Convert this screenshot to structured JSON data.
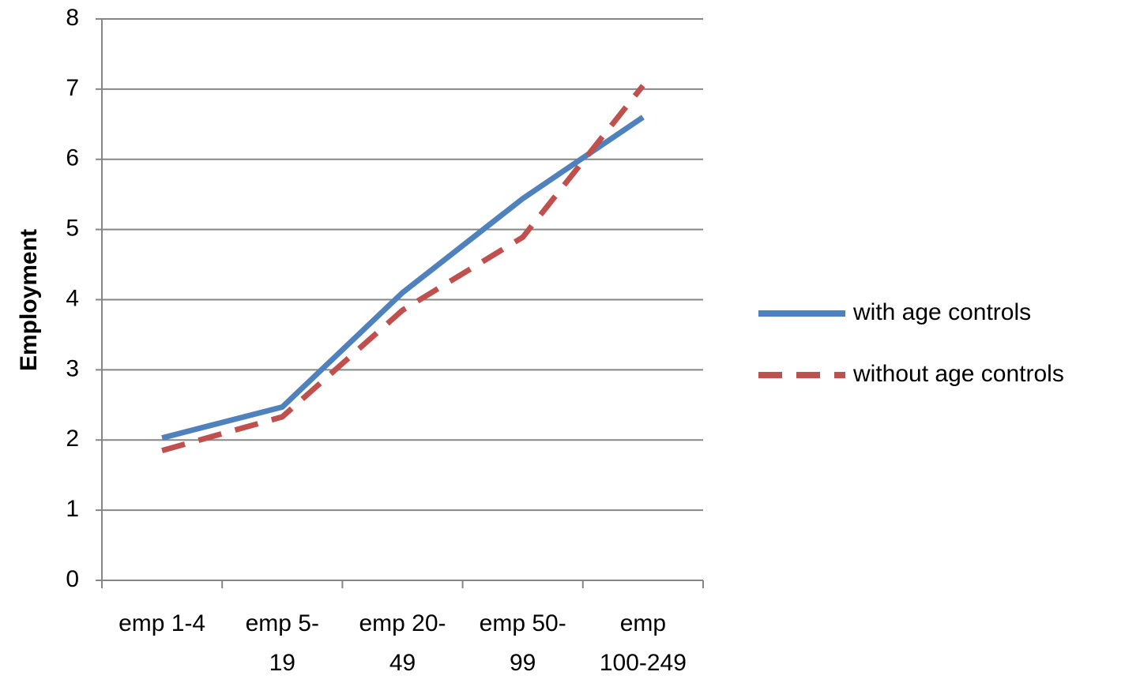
{
  "chart_data": {
    "type": "line",
    "y_label": "Employment",
    "categories": [
      "emp 1-4",
      "emp 5-19",
      "emp 20-49",
      "emp 50-99",
      "emp 100-249"
    ],
    "series": [
      {
        "name": "with age controls",
        "color": "#4f81bd",
        "dash": false,
        "values": [
          2.03,
          2.47,
          4.1,
          5.44,
          6.6
        ]
      },
      {
        "name": "without age controls",
        "color": "#c0504d",
        "dash": true,
        "values": [
          1.85,
          2.33,
          3.85,
          4.89,
          7.05
        ]
      }
    ],
    "ylim": [
      0,
      8
    ],
    "yticks": [
      0,
      1,
      2,
      3,
      4,
      5,
      6,
      7,
      8
    ],
    "grid": true,
    "legend": "right"
  }
}
